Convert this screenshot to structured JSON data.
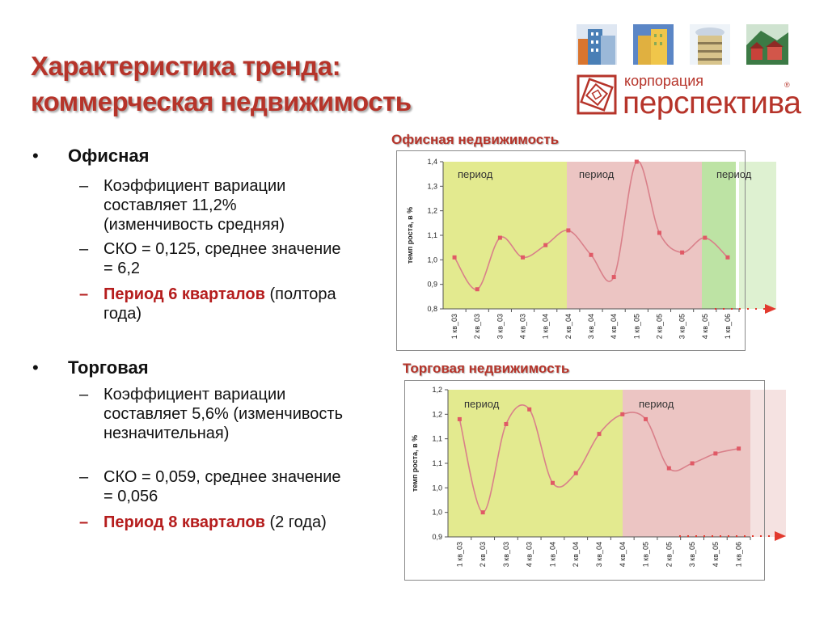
{
  "title": {
    "line1": "Характеристика тренда:",
    "line2": "коммерческая недвижимость"
  },
  "logo": {
    "small": "корпорация",
    "big": "перспектива",
    "reg": "®",
    "icons": [
      "building-tile-icon",
      "building-tile-icon",
      "building-tile-icon",
      "houses-tile-icon"
    ],
    "color": "#b6342a"
  },
  "sections": [
    {
      "bullet": "•",
      "heading": "Офисная",
      "items": [
        {
          "dash": "–",
          "text": "Коэффициент вариации составляет 11,2% (изменчивость средняя)"
        },
        {
          "dash": "–",
          "text": "СКО = 0,125, среднее значение = 6,2"
        },
        {
          "dash": "–",
          "red": "Период 6 кварталов",
          "rest": " (полтора года)"
        }
      ]
    },
    {
      "bullet": "•",
      "heading": "Торговая",
      "items": [
        {
          "dash": "–",
          "text": "Коэффициент вариации составляет 5,6% (изменчивость незначительная)"
        },
        {
          "dash": "–",
          "text": "СКО = 0,059, среднее значение = 0,056"
        },
        {
          "dash": "–",
          "red": "Период 8 кварталов",
          "rest": " (2 года)"
        }
      ]
    }
  ],
  "colors": {
    "accent": "#b6342a",
    "line": "#d9808a",
    "marker": "#e05a66",
    "green_band": "#e3ea8f",
    "pink_band": "#ecc5c3",
    "green2_band": "#bde3a4",
    "arrow": "#e23a2e"
  },
  "chart_data": [
    {
      "type": "line",
      "title": "Офисная недвижимость",
      "ylabel": "темп роста, в %",
      "xlabel": "",
      "ylim": [
        0.8,
        1.4
      ],
      "yticks": [
        "0,8",
        "0,9",
        "1,0",
        "1,1",
        "1,2",
        "1,3",
        "1,4"
      ],
      "categories": [
        "1 кв_03",
        "2 кв_03",
        "3 кв_03",
        "4 кв_03",
        "1 кв_04",
        "2 кв_04",
        "3 кв_04",
        "4 кв_04",
        "1 кв_05",
        "2 кв_05",
        "3 кв_05",
        "4 кв_05",
        "1 кв_06"
      ],
      "values": [
        1.01,
        0.88,
        1.09,
        1.01,
        1.06,
        1.12,
        1.02,
        0.93,
        1.4,
        1.11,
        1.03,
        1.09,
        1.01
      ],
      "periods": [
        {
          "label": "период",
          "color": "green"
        },
        {
          "label": "период",
          "color": "pink"
        },
        {
          "label": "период",
          "color": "green2"
        }
      ],
      "grid": false,
      "legend": "none"
    },
    {
      "type": "line",
      "title": "Торговая недвижимость",
      "ylabel": "темп роста, в %",
      "xlabel": "",
      "ylim": [
        0.9,
        1.2
      ],
      "yticks": [
        "0,9",
        "1,0",
        "1,0",
        "1,1",
        "1,1",
        "1,2",
        "1,2"
      ],
      "categories": [
        "1 кв_03",
        "2 кв_03",
        "3 кв_03",
        "4 кв_03",
        "1 кв_04",
        "2 кв_04",
        "3 кв_04",
        "4 кв_04",
        "1 кв_05",
        "2 кв_05",
        "3 кв_05",
        "4 кв_05",
        "1 кв_06"
      ],
      "values": [
        1.14,
        0.95,
        1.13,
        1.16,
        1.01,
        1.03,
        1.11,
        1.15,
        1.14,
        1.04,
        1.05,
        1.07,
        1.08
      ],
      "periods": [
        {
          "label": "период",
          "color": "green"
        },
        {
          "label": "период",
          "color": "pink"
        }
      ],
      "grid": false,
      "legend": "none"
    }
  ]
}
